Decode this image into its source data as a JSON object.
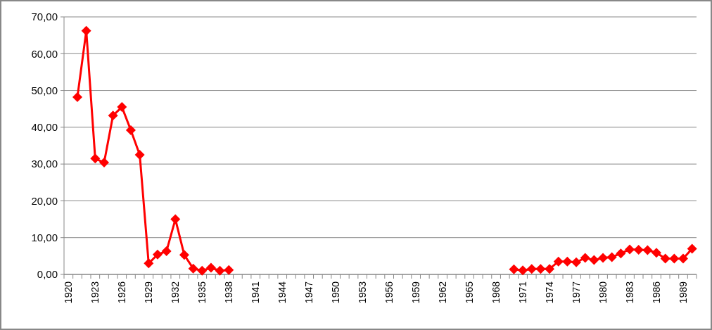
{
  "chart_data": {
    "type": "line",
    "categories": [
      "1920",
      null,
      null,
      "1923",
      null,
      null,
      "1926",
      null,
      null,
      "1929",
      null,
      null,
      "1932",
      null,
      null,
      "1935",
      null,
      null,
      "1938",
      null,
      null,
      "1941",
      null,
      null,
      "1944",
      null,
      null,
      "1947",
      null,
      null,
      "1950",
      null,
      null,
      "1953",
      null,
      null,
      "1956",
      null,
      null,
      "1959",
      null,
      null,
      "1962",
      null,
      null,
      "1965",
      null,
      null,
      "1968",
      null,
      null,
      "1971",
      null,
      null,
      "1974",
      null,
      null,
      "1977",
      null,
      null,
      "1980",
      null,
      null,
      "1983",
      null,
      null,
      "1986",
      null,
      null,
      "1989",
      null
    ],
    "series": [
      {
        "color": "#ff0000",
        "values": [
          null,
          48.2,
          66.2,
          31.5,
          30.4,
          43.2,
          45.5,
          39.2,
          32.5,
          3.0,
          5.4,
          6.3,
          15.0,
          5.3,
          1.6,
          1.0,
          1.8,
          1.0,
          1.2,
          null,
          null,
          null,
          null,
          null,
          null,
          null,
          null,
          null,
          null,
          null,
          null,
          null,
          null,
          null,
          null,
          null,
          null,
          null,
          null,
          null,
          null,
          null,
          null,
          null,
          null,
          null,
          null,
          null,
          null,
          null,
          1.4,
          1.1,
          1.5,
          1.5,
          1.5,
          3.5,
          3.5,
          3.3,
          4.5,
          3.9,
          4.5,
          4.7,
          5.7,
          6.8,
          6.7,
          6.6,
          5.9,
          4.3,
          4.3,
          4.3,
          7.0
        ]
      }
    ],
    "ylim": [
      0,
      70
    ],
    "yticks": [
      {
        "value": 0,
        "label": "0,00"
      },
      {
        "value": 10,
        "label": "10,00"
      },
      {
        "value": 20,
        "label": "20,00"
      },
      {
        "value": 30,
        "label": "30,00"
      },
      {
        "value": 40,
        "label": "40,00"
      },
      {
        "value": 50,
        "label": "50,00"
      },
      {
        "value": 60,
        "label": "60,00"
      },
      {
        "value": 70,
        "label": "70,00"
      }
    ],
    "grid": "y",
    "marker": "diamond",
    "line_style": "solid"
  }
}
